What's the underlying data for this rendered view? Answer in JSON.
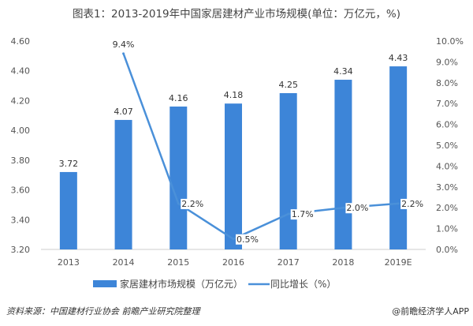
{
  "chart_data": {
    "type": "bar+line",
    "title": "图表1：2013-2019年中国家居建材产业市场规模(单位：万亿元，%)",
    "categories": [
      "2013",
      "2014",
      "2015",
      "2016",
      "2017",
      "2018",
      "2019E"
    ],
    "series": [
      {
        "name": "家居建材市场规模（万亿元）",
        "type": "bar",
        "axis": "left",
        "color": "#3d85d8",
        "values": [
          3.72,
          4.07,
          4.16,
          4.18,
          4.25,
          4.34,
          4.43
        ],
        "labels": [
          "3.72",
          "4.07",
          "4.16",
          "4.18",
          "4.25",
          "4.34",
          "4.43"
        ]
      },
      {
        "name": "同比增长（%）",
        "type": "line",
        "axis": "right",
        "color": "#4a90d9",
        "values": [
          null,
          9.4,
          2.2,
          0.5,
          1.7,
          2.0,
          2.2
        ],
        "labels": [
          "",
          "9.4%",
          "2.2%",
          "0.5%",
          "1.7%",
          "2.0%",
          "2.2%"
        ]
      }
    ],
    "y_left": {
      "range": [
        3.2,
        4.6
      ],
      "ticks": [
        "3.20",
        "3.40",
        "3.60",
        "3.80",
        "4.00",
        "4.20",
        "4.40",
        "4.60"
      ]
    },
    "y_right": {
      "range": [
        0,
        10
      ],
      "ticks": [
        "0.0%",
        "1.0%",
        "2.0%",
        "3.0%",
        "4.0%",
        "5.0%",
        "6.0%",
        "7.0%",
        "8.0%",
        "9.0%",
        "10.0%"
      ]
    },
    "grid": false,
    "legend": "bottom"
  },
  "source": "资料来源：中国建材行业协会 前瞻产业研究院整理",
  "credit": "@前瞻经济学人APP"
}
